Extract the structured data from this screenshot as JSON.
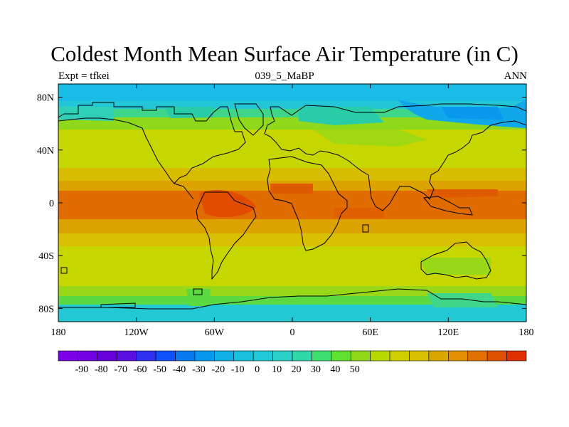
{
  "title": "Coldest Month Mean Surface Air Temperature (in C)",
  "subtitle_left": "Expt = tfkei",
  "subtitle_center": "039_5_MaBP",
  "subtitle_right": "ANN",
  "x_ticks": [
    "180",
    "120W",
    "60W",
    "0",
    "60E",
    "120E",
    "180"
  ],
  "y_ticks": [
    "80N",
    "40N",
    "0",
    "40S",
    "80S"
  ],
  "colorbar": {
    "colors": [
      "#7b00e8",
      "#7000e0",
      "#6500d8",
      "#5a10e0",
      "#3030f0",
      "#1050f8",
      "#0878f0",
      "#0898f0",
      "#10b0e8",
      "#18c0e0",
      "#20c8d8",
      "#28d0c8",
      "#30d8a8",
      "#40e070",
      "#60e030",
      "#90d818",
      "#b8d800",
      "#d0d000",
      "#d8c000",
      "#d8a800",
      "#e09000",
      "#e07000",
      "#e05000",
      "#e03000"
    ],
    "labels": [
      "-90",
      "-80",
      "-70",
      "-60",
      "-50",
      "-40",
      "-30",
      "-20",
      "-10",
      "0",
      "10",
      "20",
      "30",
      "40",
      "50"
    ]
  },
  "chart_data": {
    "type": "heatmap",
    "title": "Coldest Month Mean Surface Air Temperature (in C)",
    "units": "C",
    "x_range": [
      -180,
      180
    ],
    "y_range": [
      -90,
      90
    ],
    "zonal_band_values": [
      {
        "lat_min": 75,
        "lat_max": 90,
        "value": -25
      },
      {
        "lat_min": 65,
        "lat_max": 75,
        "value": -15
      },
      {
        "lat_min": 55,
        "lat_max": 65,
        "value": 0
      },
      {
        "lat_min": 40,
        "lat_max": 55,
        "value": 12
      },
      {
        "lat_min": 25,
        "lat_max": 40,
        "value": 20
      },
      {
        "lat_min": 10,
        "lat_max": 25,
        "value": 27
      },
      {
        "lat_min": -10,
        "lat_max": 10,
        "value": 34
      },
      {
        "lat_min": -25,
        "lat_max": -10,
        "value": 27
      },
      {
        "lat_min": -40,
        "lat_max": -25,
        "value": 20
      },
      {
        "lat_min": -55,
        "lat_max": -40,
        "value": 14
      },
      {
        "lat_min": -65,
        "lat_max": -55,
        "value": 8
      },
      {
        "lat_min": -75,
        "lat_max": -65,
        "value": 0
      },
      {
        "lat_min": -90,
        "lat_max": -75,
        "value": -12
      }
    ]
  }
}
